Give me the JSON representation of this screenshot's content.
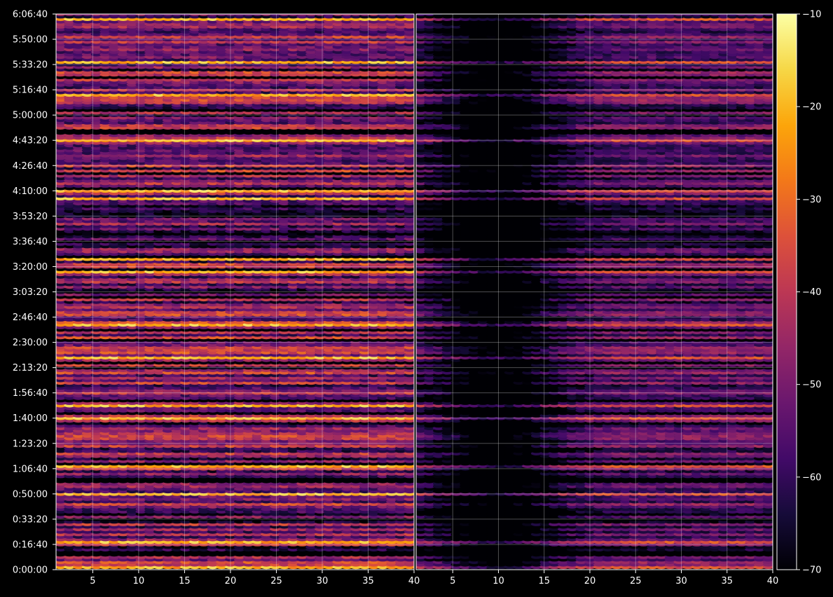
{
  "chart_data": {
    "type": "heatmap",
    "title": "",
    "background": "#000000",
    "colormap": "inferno",
    "panels": [
      {
        "xlabel": "",
        "ylabel": "",
        "xlim": [
          1,
          40
        ],
        "x_ticks": [
          "5",
          "10",
          "15",
          "20",
          "25",
          "30",
          "35",
          "40"
        ],
        "grid": true
      },
      {
        "xlabel": "",
        "ylabel": "",
        "xlim": [
          1,
          40
        ],
        "x_ticks": [
          "5",
          "10",
          "15",
          "20",
          "25",
          "30",
          "35",
          "40"
        ],
        "grid": true
      }
    ],
    "y_axis": {
      "ylim": [
        "0:00:00",
        "6:06:40"
      ],
      "ticks": [
        "0:00:00",
        "0:16:40",
        "0:33:20",
        "0:50:00",
        "1:06:40",
        "1:23:20",
        "1:40:00",
        "1:56:40",
        "2:13:20",
        "2:30:00",
        "2:46:40",
        "3:03:20",
        "3:20:00",
        "3:36:40",
        "3:53:20",
        "4:10:00",
        "4:26:40",
        "4:43:20",
        "5:00:00",
        "5:16:40",
        "5:33:20",
        "5:50:00",
        "6:06:40"
      ]
    },
    "colorbar": {
      "range": [
        -70,
        -10
      ],
      "ticks": [
        "−10",
        "−20",
        "−30",
        "−40",
        "−50",
        "−60",
        "−70"
      ]
    },
    "bright_row_times": [
      "0:01:40",
      "0:18:20",
      "0:50:00",
      "1:08:20",
      "1:40:00",
      "1:48:20",
      "2:20:00",
      "2:41:40",
      "3:16:40",
      "3:25:00",
      "4:05:00",
      "4:10:00",
      "4:43:20",
      "5:13:20",
      "5:35:00",
      "6:03:20"
    ]
  }
}
